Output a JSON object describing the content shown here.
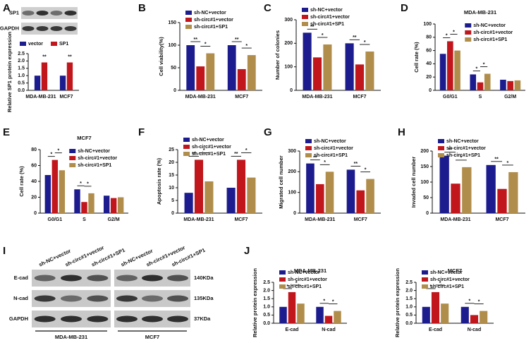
{
  "panel_letters": [
    "A",
    "B",
    "C",
    "D",
    "E",
    "F",
    "G",
    "H",
    "I",
    "J"
  ],
  "blots": {
    "A": {
      "rows": [
        "SP1",
        "GAPDH"
      ]
    },
    "I": {
      "columns": [
        "sh-NC+vector",
        "sh-circ#1+vector",
        "sh-circ#1+SP1",
        "sh-NC+vector",
        "sh-circ#1+vector",
        "sh-circ#1+SP1"
      ],
      "rows": [
        "E-cad",
        "N-cad",
        "GAPDH"
      ],
      "sizes": [
        "140KDa",
        "135KDa",
        "37KDa"
      ],
      "groups": [
        "MDA-MB-231",
        "MCF7"
      ]
    }
  },
  "chart_data": [
    {
      "type": "bar",
      "ylabel": "Relative SP1 protein expression",
      "categories": [
        "MDA-MB-231",
        "MCF7"
      ],
      "legend": "top",
      "series": [
        {
          "name": "vector",
          "color": "#1c1c8e",
          "values": [
            1.0,
            1.0
          ]
        },
        {
          "name": "SP1",
          "color": "#c0161c",
          "values": [
            1.9,
            1.9
          ]
        }
      ],
      "ylim": [
        0,
        2.5
      ],
      "yticks": [
        {
          "value": 0,
          "label": "0.0"
        },
        {
          "value": 0.5,
          "label": "0.5"
        },
        {
          "value": 1,
          "label": "1.0"
        },
        {
          "value": 1.5,
          "label": "1.5"
        },
        {
          "value": 2,
          "label": "2.0"
        },
        {
          "value": 2.5,
          "label": "2.5"
        }
      ],
      "significance": [
        {
          "label": "**",
          "category": 0,
          "series": [
            1
          ]
        },
        {
          "label": "**",
          "category": 1,
          "series": [
            1
          ]
        }
      ]
    },
    {
      "type": "bar",
      "ylabel": "Cell viability(%)",
      "categories": [
        "MDA-MB-231",
        "MCF7"
      ],
      "legend": "upper left",
      "series": [
        {
          "name": "sh-NC+vector",
          "color": "#1c1c8e",
          "values": [
            100,
            100
          ]
        },
        {
          "name": "sh-circ#1+vector",
          "color": "#c0161c",
          "values": [
            53,
            47
          ]
        },
        {
          "name": "sh-circ#1+SP1",
          "color": "#b08d4a",
          "values": [
            82,
            78
          ]
        }
      ],
      "ylim": [
        0,
        150
      ],
      "yticks": [
        0,
        50,
        100,
        150
      ],
      "significance": [
        {
          "label": "**",
          "category": 0,
          "series": [
            0,
            1
          ]
        },
        {
          "label": "*",
          "category": 0,
          "series": [
            1,
            2
          ]
        },
        {
          "label": "**",
          "category": 1,
          "series": [
            0,
            1
          ]
        },
        {
          "label": "*",
          "category": 1,
          "series": [
            1,
            2
          ]
        }
      ]
    },
    {
      "type": "bar",
      "ylabel": "Number of colonies",
      "categories": [
        "MDA-MB-231",
        "MCF7"
      ],
      "legend": "upper left",
      "series": [
        {
          "name": "sh-NC+vector",
          "color": "#1c1c8e",
          "values": [
            245,
            200
          ]
        },
        {
          "name": "sh-circ#1+vector",
          "color": "#c0161c",
          "values": [
            140,
            110
          ]
        },
        {
          "name": "sh-circ#1+SP1",
          "color": "#b08d4a",
          "values": [
            195,
            165
          ]
        }
      ],
      "ylim": [
        0,
        300
      ],
      "yticks": [
        0,
        100,
        200,
        300
      ],
      "significance": [
        {
          "label": "**",
          "category": 0,
          "series": [
            0,
            1
          ]
        },
        {
          "label": "*",
          "category": 0,
          "series": [
            1,
            2
          ]
        },
        {
          "label": "**",
          "category": 1,
          "series": [
            0,
            1
          ]
        },
        {
          "label": "*",
          "category": 1,
          "series": [
            1,
            2
          ]
        }
      ]
    },
    {
      "type": "bar",
      "title": "MDA-MB-231",
      "ylabel": "Cell rate (%)",
      "categories": [
        "G0/G1",
        "S",
        "G2/M"
      ],
      "legend": "upper right",
      "series": [
        {
          "name": "sh-NC+vector",
          "color": "#1c1c8e",
          "values": [
            55,
            24,
            16
          ]
        },
        {
          "name": "sh-circ#1+vector",
          "color": "#c0161c",
          "values": [
            74,
            12,
            14
          ]
        },
        {
          "name": "sh-circ#1+SP1",
          "color": "#b08d4a",
          "values": [
            60,
            25,
            15
          ]
        }
      ],
      "ylim": [
        0,
        100
      ],
      "yticks": [
        0,
        20,
        40,
        60,
        80,
        100
      ],
      "significance": [
        {
          "label": "*",
          "category": 0,
          "series": [
            0,
            1
          ]
        },
        {
          "label": "*",
          "category": 0,
          "series": [
            1,
            2
          ]
        },
        {
          "label": "*",
          "category": 1,
          "series": [
            0,
            1
          ]
        },
        {
          "label": "*",
          "category": 1,
          "series": [
            1,
            2
          ]
        }
      ]
    },
    {
      "type": "bar",
      "title": "MCF7",
      "ylabel": "Cell rate (%)",
      "categories": [
        "G0/G1",
        "S",
        "G2/M"
      ],
      "legend": "upper right",
      "series": [
        {
          "name": "sh-NC+vector",
          "color": "#1c1c8e",
          "values": [
            48,
            30,
            22
          ]
        },
        {
          "name": "sh-circ#1+vector",
          "color": "#c0161c",
          "values": [
            67,
            14,
            19
          ]
        },
        {
          "name": "sh-circ#1+SP1",
          "color": "#b08d4a",
          "values": [
            54,
            25,
            20
          ]
        }
      ],
      "ylim": [
        0,
        80
      ],
      "yticks": [
        0,
        20,
        40,
        60,
        80
      ],
      "significance": [
        {
          "label": "*",
          "category": 0,
          "series": [
            0,
            1
          ]
        },
        {
          "label": "*",
          "category": 0,
          "series": [
            1,
            2
          ]
        },
        {
          "label": "*",
          "category": 1,
          "series": [
            0,
            1
          ]
        },
        {
          "label": "*",
          "category": 1,
          "series": [
            1,
            2
          ]
        }
      ]
    },
    {
      "type": "bar",
      "ylabel": "Apoptosis rate (%)",
      "categories": [
        "MDA-MB-231",
        "MCF7"
      ],
      "legend": "upper left",
      "series": [
        {
          "name": "sh-NC+vector",
          "color": "#1c1c8e",
          "values": [
            8,
            10
          ]
        },
        {
          "name": "sh-circ#1+vector",
          "color": "#c0161c",
          "values": [
            21,
            21
          ]
        },
        {
          "name": "sh-circ#1+SP1",
          "color": "#b08d4a",
          "values": [
            12.5,
            14
          ]
        }
      ],
      "ylim": [
        0,
        25
      ],
      "yticks": [
        0,
        5,
        10,
        15,
        20,
        25
      ],
      "significance": [
        {
          "label": "**",
          "category": 0,
          "series": [
            0,
            1
          ]
        },
        {
          "label": "*",
          "category": 0,
          "series": [
            1,
            2
          ]
        },
        {
          "label": "**",
          "category": 1,
          "series": [
            0,
            1
          ]
        },
        {
          "label": "*",
          "category": 1,
          "series": [
            1,
            2
          ]
        }
      ]
    },
    {
      "type": "bar",
      "ylabel": "Migrated cell number",
      "categories": [
        "MDA-MB-231",
        "MCF7"
      ],
      "legend": "upper left",
      "series": [
        {
          "name": "sh-NC+vector",
          "color": "#1c1c8e",
          "values": [
            240,
            210
          ]
        },
        {
          "name": "sh-circ#1+vector",
          "color": "#c0161c",
          "values": [
            140,
            110
          ]
        },
        {
          "name": "sh-circ#1+SP1",
          "color": "#b08d4a",
          "values": [
            200,
            165
          ]
        }
      ],
      "ylim": [
        0,
        300
      ],
      "yticks": [
        0,
        100,
        200,
        300
      ],
      "significance": [
        {
          "label": "**",
          "category": 0,
          "series": [
            0,
            1
          ]
        },
        {
          "label": "*",
          "category": 0,
          "series": [
            1,
            2
          ]
        },
        {
          "label": "**",
          "category": 1,
          "series": [
            0,
            1
          ]
        },
        {
          "label": "*",
          "category": 1,
          "series": [
            1,
            2
          ]
        }
      ]
    },
    {
      "type": "bar",
      "ylabel": "Invaded cell number",
      "categories": [
        "MDA-MB-231",
        "MCF7"
      ],
      "legend": "upper left",
      "series": [
        {
          "name": "sh-NC+vector",
          "color": "#1c1c8e",
          "values": [
            185,
            155
          ]
        },
        {
          "name": "sh-circ#1+vector",
          "color": "#c0161c",
          "values": [
            95,
            78
          ]
        },
        {
          "name": "sh-circ#1+SP1",
          "color": "#b08d4a",
          "values": [
            148,
            132
          ]
        }
      ],
      "ylim": [
        0,
        200
      ],
      "yticks": [
        0,
        50,
        100,
        150,
        200
      ],
      "significance": [
        {
          "label": "**",
          "category": 0,
          "series": [
            0,
            1
          ]
        },
        {
          "label": "*",
          "category": 0,
          "series": [
            1,
            2
          ]
        },
        {
          "label": "**",
          "category": 1,
          "series": [
            0,
            1
          ]
        },
        {
          "label": "*",
          "category": 1,
          "series": [
            1,
            2
          ]
        }
      ]
    },
    {
      "type": "bar",
      "title": "MDA-MB-231",
      "ylabel": "Relative protein expression",
      "categories": [
        "E-cad",
        "N-cad"
      ],
      "legend": "upper left",
      "series": [
        {
          "name": "sh-NC+vector",
          "color": "#1c1c8e",
          "values": [
            1.0,
            1.0
          ]
        },
        {
          "name": "sh-circ#1+vector",
          "color": "#c0161c",
          "values": [
            1.9,
            0.45
          ]
        },
        {
          "name": "sh-circ#1+SP1",
          "color": "#b08d4a",
          "values": [
            1.2,
            0.75
          ]
        }
      ],
      "ylim": [
        0,
        2.5
      ],
      "yticks": [
        {
          "value": 0,
          "label": "0.0"
        },
        {
          "value": 0.5,
          "label": "0.5"
        },
        {
          "value": 1,
          "label": "1.0"
        },
        {
          "value": 1.5,
          "label": "1.5"
        },
        {
          "value": 2,
          "label": "2.0"
        },
        {
          "value": 2.5,
          "label": "2.5"
        }
      ],
      "significance": [
        {
          "label": "*",
          "category": 0,
          "series": [
            0,
            1
          ]
        },
        {
          "label": "*",
          "category": 0,
          "series": [
            1,
            2
          ]
        },
        {
          "label": "*",
          "category": 1,
          "series": [
            0,
            1
          ]
        },
        {
          "label": "*",
          "category": 1,
          "series": [
            1,
            2
          ]
        }
      ]
    },
    {
      "type": "bar",
      "title": "MCF7",
      "ylabel": "Relative protein expression",
      "categories": [
        "E-cad",
        "N-cad"
      ],
      "legend": "upper left",
      "series": [
        {
          "name": "sh-NC+vector",
          "color": "#1c1c8e",
          "values": [
            1.0,
            1.0
          ]
        },
        {
          "name": "sh-circ#1+vector",
          "color": "#c0161c",
          "values": [
            1.9,
            0.5
          ]
        },
        {
          "name": "sh-circ#1+SP1",
          "color": "#b08d4a",
          "values": [
            1.2,
            0.75
          ]
        }
      ],
      "ylim": [
        0,
        2.5
      ],
      "yticks": [
        {
          "value": 0,
          "label": "0.0"
        },
        {
          "value": 0.5,
          "label": "0.5"
        },
        {
          "value": 1,
          "label": "1.0"
        },
        {
          "value": 1.5,
          "label": "1.5"
        },
        {
          "value": 2,
          "label": "2.0"
        },
        {
          "value": 2.5,
          "label": "2.5"
        }
      ],
      "significance": [
        {
          "label": "*",
          "category": 0,
          "series": [
            0,
            1
          ]
        },
        {
          "label": "*",
          "category": 0,
          "series": [
            1,
            2
          ]
        },
        {
          "label": "*",
          "category": 1,
          "series": [
            0,
            1
          ]
        },
        {
          "label": "*",
          "category": 1,
          "series": [
            1,
            2
          ]
        }
      ]
    }
  ]
}
